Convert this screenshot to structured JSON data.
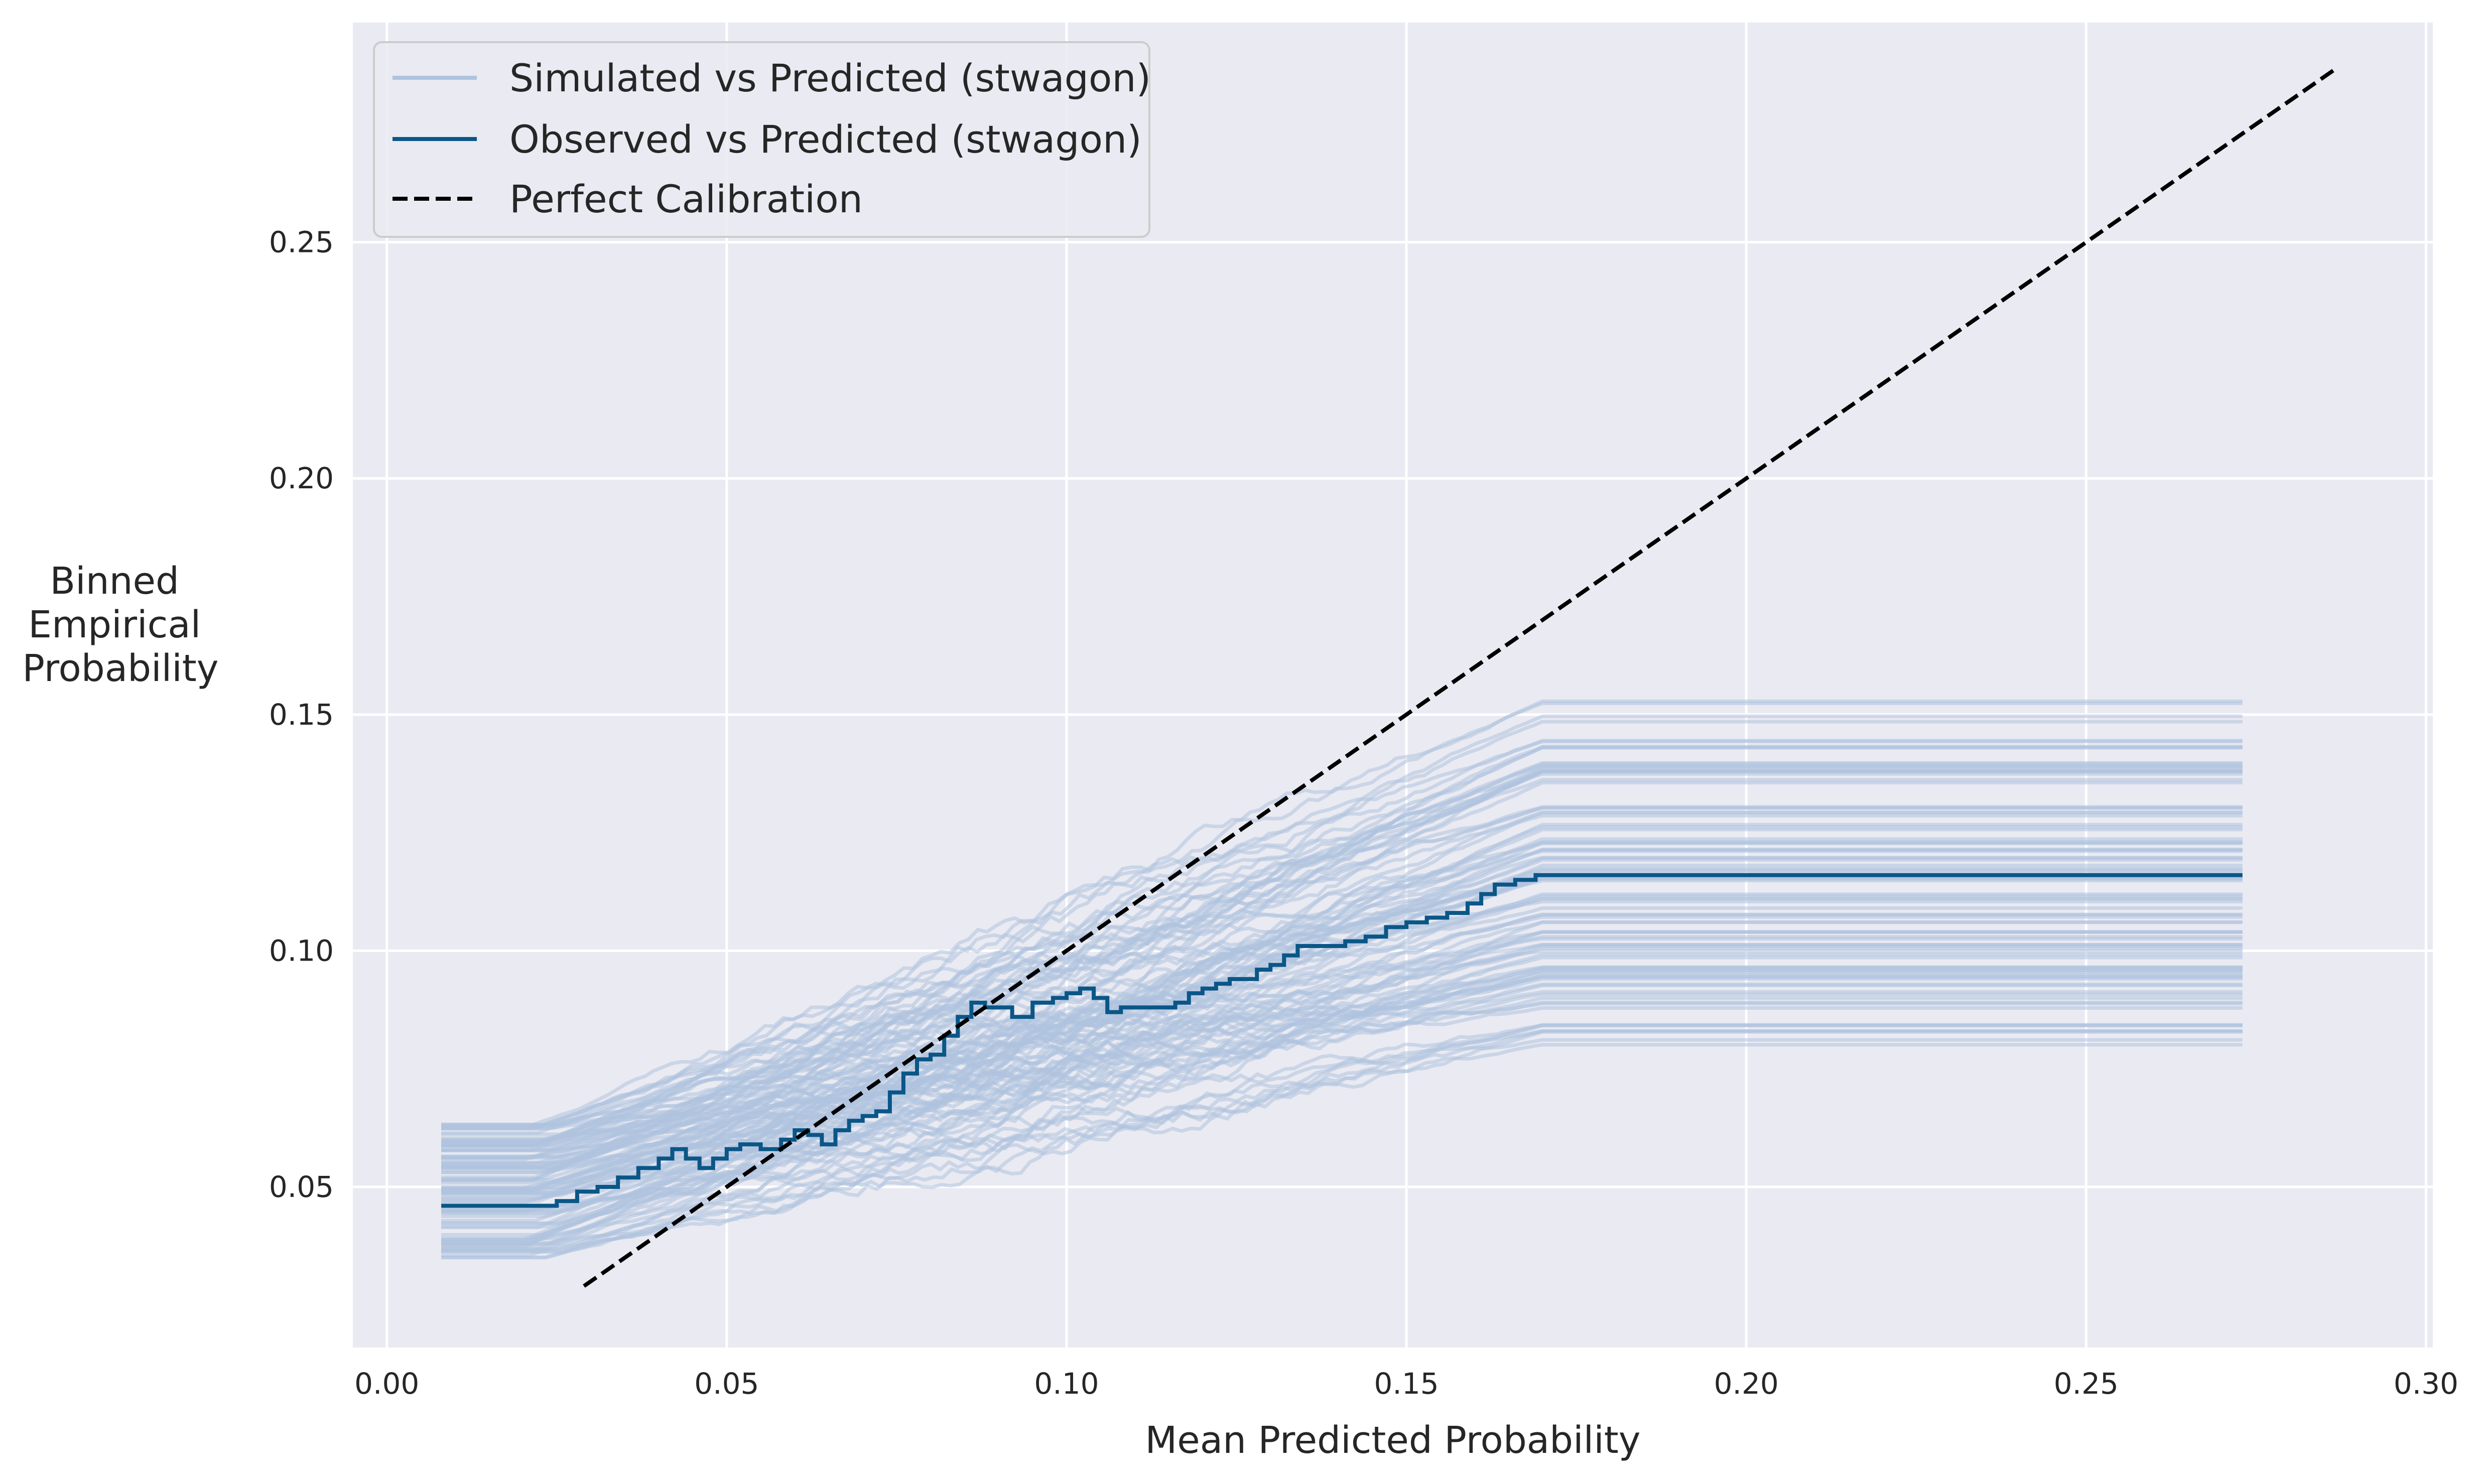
{
  "chart_data": {
    "type": "line",
    "title": "",
    "xlabel": "Mean Predicted Probability",
    "ylabel_lines": [
      "Binned",
      "Empirical",
      "Probability"
    ],
    "xlim": [
      -0.005,
      0.301
    ],
    "ylim": [
      0.016,
      0.2965
    ],
    "x_ticks": [
      0.0,
      0.05,
      0.1,
      0.15,
      0.2,
      0.25,
      0.3
    ],
    "x_tick_labels": [
      "0.00",
      "0.05",
      "0.10",
      "0.15",
      "0.20",
      "0.25",
      "0.30"
    ],
    "y_ticks": [
      0.05,
      0.1,
      0.15,
      0.2,
      0.25
    ],
    "y_tick_labels": [
      "0.05",
      "0.10",
      "0.15",
      "0.20",
      "0.25"
    ],
    "grid": true,
    "legend_position": "top-left",
    "colors": {
      "background": "#eaeaf2",
      "grid": "#ffffff",
      "simulated": "#aec3de",
      "observed": "#0a5687",
      "perfect": "#000000"
    },
    "series": [
      {
        "name": "Simulated vs Predicted (stwagon)",
        "style": "light-band",
        "count": 100,
        "x_start": 0.008,
        "x_plateau": 0.17,
        "x_end": 0.273,
        "start_range": [
          0.035,
          0.064
        ],
        "plateau_range": [
          0.079,
          0.155
        ]
      },
      {
        "name": "Observed vs Predicted (stwagon)",
        "style": "solid",
        "points": [
          [
            0.008,
            0.046
          ],
          [
            0.022,
            0.046
          ],
          [
            0.025,
            0.047
          ],
          [
            0.028,
            0.049
          ],
          [
            0.031,
            0.05
          ],
          [
            0.034,
            0.052
          ],
          [
            0.037,
            0.054
          ],
          [
            0.04,
            0.056
          ],
          [
            0.042,
            0.058
          ],
          [
            0.044,
            0.056
          ],
          [
            0.046,
            0.054
          ],
          [
            0.048,
            0.056
          ],
          [
            0.05,
            0.058
          ],
          [
            0.052,
            0.059
          ],
          [
            0.055,
            0.058
          ],
          [
            0.058,
            0.06
          ],
          [
            0.06,
            0.062
          ],
          [
            0.062,
            0.061
          ],
          [
            0.064,
            0.059
          ],
          [
            0.066,
            0.062
          ],
          [
            0.068,
            0.064
          ],
          [
            0.07,
            0.065
          ],
          [
            0.072,
            0.066
          ],
          [
            0.074,
            0.07
          ],
          [
            0.076,
            0.074
          ],
          [
            0.078,
            0.077
          ],
          [
            0.08,
            0.078
          ],
          [
            0.082,
            0.082
          ],
          [
            0.084,
            0.086
          ],
          [
            0.086,
            0.089
          ],
          [
            0.088,
            0.088
          ],
          [
            0.09,
            0.088
          ],
          [
            0.092,
            0.086
          ],
          [
            0.095,
            0.089
          ],
          [
            0.098,
            0.09
          ],
          [
            0.1,
            0.091
          ],
          [
            0.102,
            0.092
          ],
          [
            0.104,
            0.09
          ],
          [
            0.106,
            0.087
          ],
          [
            0.108,
            0.088
          ],
          [
            0.112,
            0.088
          ],
          [
            0.116,
            0.089
          ],
          [
            0.118,
            0.091
          ],
          [
            0.12,
            0.092
          ],
          [
            0.122,
            0.093
          ],
          [
            0.124,
            0.094
          ],
          [
            0.126,
            0.094
          ],
          [
            0.128,
            0.096
          ],
          [
            0.13,
            0.097
          ],
          [
            0.132,
            0.099
          ],
          [
            0.134,
            0.101
          ],
          [
            0.138,
            0.101
          ],
          [
            0.141,
            0.102
          ],
          [
            0.144,
            0.103
          ],
          [
            0.147,
            0.105
          ],
          [
            0.15,
            0.106
          ],
          [
            0.153,
            0.107
          ],
          [
            0.156,
            0.108
          ],
          [
            0.159,
            0.11
          ],
          [
            0.161,
            0.112
          ],
          [
            0.163,
            0.114
          ],
          [
            0.166,
            0.115
          ],
          [
            0.169,
            0.116
          ],
          [
            0.273,
            0.116
          ]
        ]
      },
      {
        "name": "Perfect Calibration",
        "style": "dashed",
        "points": [
          [
            0.029,
            0.029
          ],
          [
            0.287,
            0.287
          ]
        ]
      }
    ]
  }
}
